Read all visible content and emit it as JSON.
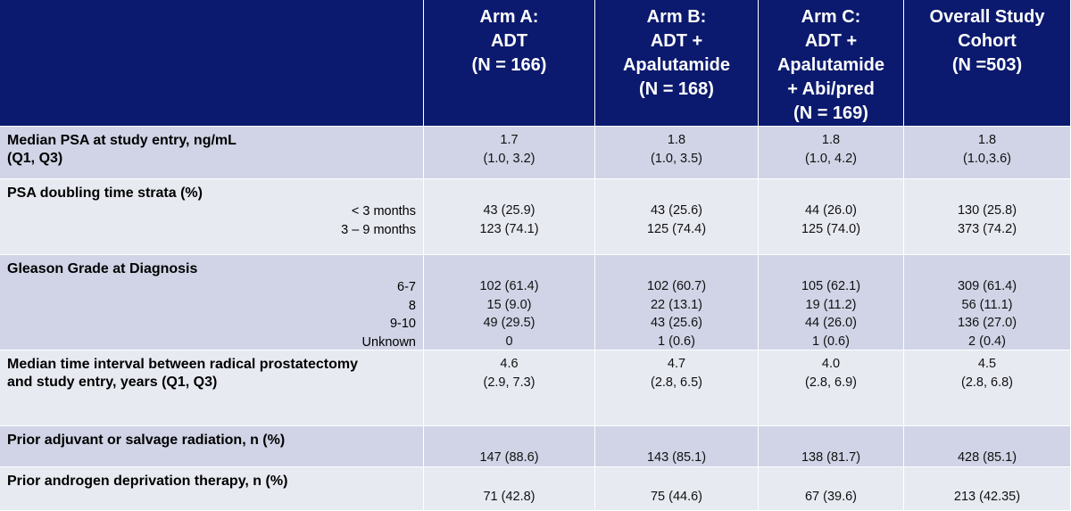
{
  "header": {
    "columns": [
      [
        "Arm A:",
        "ADT",
        "(N = 166)"
      ],
      [
        "Arm B:",
        "ADT +",
        "Apalutamide",
        "(N = 168)"
      ],
      [
        "Arm C:",
        "ADT +",
        "Apalutamide",
        "+ Abi/pred",
        "(N = 169)"
      ],
      [
        "Overall Study",
        "Cohort",
        "(N =503)"
      ]
    ]
  },
  "table": {
    "rows": [
      {
        "label": [
          "Median PSA at study entry, ng/mL",
          "(Q1, Q3)"
        ],
        "cells": [
          [
            "1.7",
            "(1.0, 3.2)"
          ],
          [
            "1.8",
            "(1.0, 3.5)"
          ],
          [
            "1.8",
            "(1.0, 4.2)"
          ],
          [
            "1.8",
            "(1.0,3.6)"
          ]
        ]
      },
      {
        "label": [
          "PSA doubling time strata (%)"
        ],
        "sublabels": [
          "< 3 months",
          "3 – 9 months"
        ],
        "cells": [
          [
            "43 (25.9)",
            "123 (74.1)"
          ],
          [
            "43 (25.6)",
            "125 (74.4)"
          ],
          [
            "44 (26.0)",
            "125 (74.0)"
          ],
          [
            "130 (25.8)",
            "373 (74.2)"
          ]
        ]
      },
      {
        "label": [
          "Gleason Grade at Diagnosis"
        ],
        "sublabels": [
          "6-7",
          "8",
          "9-10",
          "Unknown"
        ],
        "cells": [
          [
            "102 (61.4)",
            "15 (9.0)",
            "49 (29.5)",
            "0"
          ],
          [
            "102 (60.7)",
            "22 (13.1)",
            "43 (25.6)",
            "1 (0.6)"
          ],
          [
            "105 (62.1)",
            "19 (11.2)",
            "44 (26.0)",
            "1 (0.6)"
          ],
          [
            "309 (61.4)",
            "56 (11.1)",
            "136 (27.0)",
            "2 (0.4)"
          ]
        ]
      },
      {
        "label": [
          "Median time interval between radical prostatectomy",
          "and study entry, years (Q1, Q3)"
        ],
        "cells": [
          [
            "4.6",
            "(2.9, 7.3)"
          ],
          [
            "4.7",
            "(2.8, 6.5)"
          ],
          [
            "4.0",
            "(2.8, 6.9)"
          ],
          [
            "4.5",
            "(2.8, 6.8)"
          ]
        ]
      },
      {
        "label": [
          "Prior adjuvant or salvage radiation, n (%)"
        ],
        "cells": [
          [
            "147 (88.6)"
          ],
          [
            "143 (85.1)"
          ],
          [
            "138 (81.7)"
          ],
          [
            "428 (85.1)"
          ]
        ]
      },
      {
        "label": [
          "Prior androgen deprivation therapy, n (%)"
        ],
        "cells": [
          [
            "71 (42.8)"
          ],
          [
            "75 (44.6)"
          ],
          [
            "67 (39.6)"
          ],
          [
            "213 (42.35)"
          ]
        ]
      }
    ]
  }
}
